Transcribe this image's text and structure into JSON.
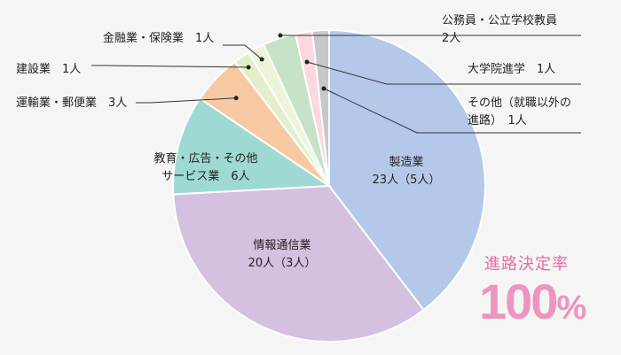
{
  "chart_data": {
    "type": "pie",
    "title": "",
    "slices": [
      {
        "name": "製造業",
        "value": 23,
        "color": "#b4c9ea",
        "label_lines": [
          "製造業",
          "23人（5人）"
        ]
      },
      {
        "name": "情報通信業",
        "value": 20,
        "color": "#d4c0e0",
        "label_lines": [
          "情報通信業",
          "20人（3人）"
        ]
      },
      {
        "name": "教育・広告・その他サービス業",
        "value": 6,
        "color": "#9fd9d3",
        "label_lines": [
          "教育・広告・その他",
          "サービス業　6人"
        ]
      },
      {
        "name": "運輸業・郵便業",
        "value": 3,
        "color": "#f7c9a2",
        "label_lines": [
          "運輸業・郵便業　3人"
        ]
      },
      {
        "name": "建設業",
        "value": 1,
        "color": "#e3efcb",
        "label_lines": [
          "建設業　1人"
        ]
      },
      {
        "name": "金融業・保険業",
        "value": 1,
        "color": "#edf5d8",
        "label_lines": [
          "金融業・保険業　1人"
        ]
      },
      {
        "name": "公務員・公立学校教員",
        "value": 2,
        "color": "#c6e3c9",
        "label_lines": [
          "公務員・公立学校教員",
          "2人"
        ]
      },
      {
        "name": "大学院進学",
        "value": 1,
        "color": "#f9d8de",
        "label_lines": [
          "大学院進学　1人"
        ]
      },
      {
        "name": "その他（就職以外の進路）",
        "value": 1,
        "color": "#c8c8c8",
        "label_lines": [
          "その他（就職以外の",
          "進路）　1人"
        ]
      }
    ]
  },
  "rate": {
    "title": "進路決定率",
    "value": "100",
    "unit": "%"
  }
}
